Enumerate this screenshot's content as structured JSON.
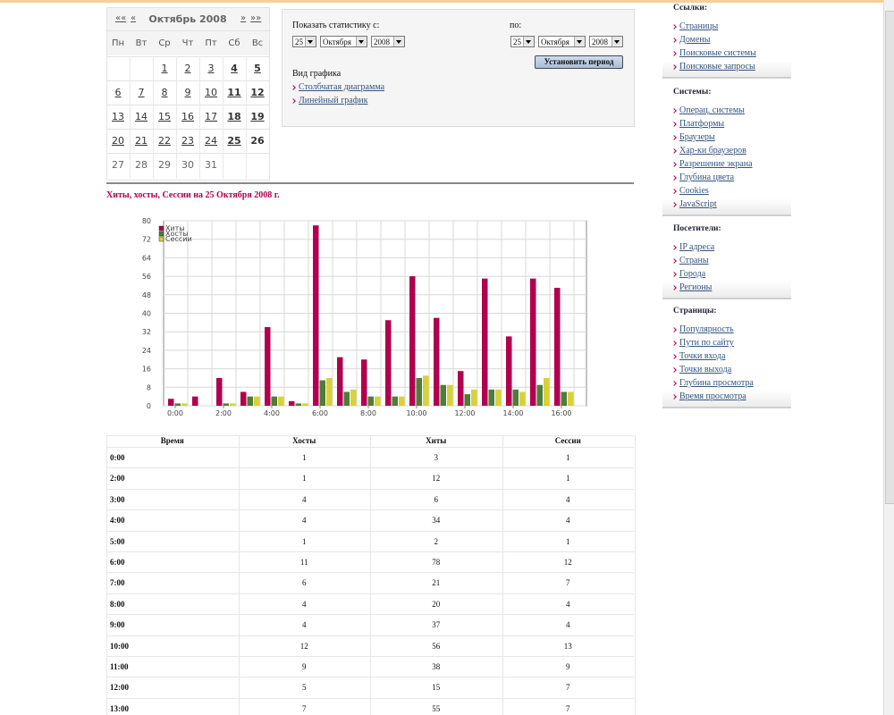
{
  "calendar": {
    "prev_year": "««",
    "prev_month": "«",
    "title": "Октябрь 2008",
    "next_month": "»",
    "next_year": "»»",
    "weekdays": [
      "Пн",
      "Вт",
      "Ср",
      "Чт",
      "Пт",
      "Сб",
      "Вс"
    ],
    "weeks": [
      [
        null,
        null,
        1,
        2,
        3,
        4,
        5
      ],
      [
        6,
        7,
        8,
        9,
        10,
        11,
        12
      ],
      [
        13,
        14,
        15,
        16,
        17,
        18,
        19
      ],
      [
        20,
        21,
        22,
        23,
        24,
        25,
        26
      ],
      [
        27,
        28,
        29,
        30,
        31,
        null,
        null
      ]
    ]
  },
  "period_form": {
    "from_label": "Показать статистику с:",
    "from": [
      "25",
      "Октября",
      "2008"
    ],
    "to_label": "по:",
    "to": [
      "25",
      "Октября",
      "2008"
    ],
    "button": "Установить период",
    "view_label": "Вид графика",
    "view_links": [
      "Столбчатая диаграмма",
      "Линейный график"
    ]
  },
  "chart_data": {
    "type": "bar",
    "title": "Хиты, хосты, Сессии на 25 Октября 2008 г.",
    "categories": [
      "0:00",
      null,
      "2:00",
      null,
      "4:00",
      null,
      "6:00",
      null,
      "8:00",
      null,
      "10:00",
      null,
      "12:00",
      null,
      "14:00",
      null,
      "16:00"
    ],
    "series": [
      {
        "name": "Хиты",
        "color": "#b0004f",
        "values": [
          3,
          4,
          12,
          6,
          34,
          2,
          78,
          21,
          20,
          37,
          56,
          38,
          15,
          55,
          30,
          55,
          51
        ]
      },
      {
        "name": "Хосты",
        "color": "#4e7d3a",
        "values": [
          1,
          0,
          1,
          4,
          4,
          1,
          11,
          6,
          4,
          4,
          12,
          9,
          5,
          7,
          7,
          9,
          6
        ]
      },
      {
        "name": "Сессии",
        "color": "#d8d23a",
        "values": [
          1,
          0,
          1,
          4,
          4,
          1,
          12,
          7,
          4,
          4,
          13,
          9,
          7,
          7,
          6,
          12,
          6
        ]
      }
    ],
    "ylim": [
      0,
      80
    ],
    "yticks": [
      0,
      8,
      16,
      24,
      32,
      40,
      48,
      56,
      64,
      72,
      80
    ],
    "grid": true,
    "legend": "upper left"
  },
  "table": {
    "header": [
      "Время",
      "Хосты",
      "Хиты",
      "Сессии"
    ],
    "rows": [
      [
        "0:00",
        1,
        3,
        1
      ],
      [
        "2:00",
        1,
        12,
        1
      ],
      [
        "3:00",
        4,
        6,
        4
      ],
      [
        "4:00",
        4,
        34,
        4
      ],
      [
        "5:00",
        1,
        2,
        1
      ],
      [
        "6:00",
        11,
        78,
        12
      ],
      [
        "7:00",
        6,
        21,
        7
      ],
      [
        "8:00",
        4,
        20,
        4
      ],
      [
        "9:00",
        4,
        37,
        4
      ],
      [
        "10:00",
        12,
        56,
        13
      ],
      [
        "11:00",
        9,
        38,
        9
      ],
      [
        "12:00",
        5,
        15,
        7
      ],
      [
        "13:00",
        7,
        55,
        7
      ]
    ]
  },
  "sidebar": [
    {
      "title": "Ссылки:",
      "items": [
        "Страницы",
        "Домены",
        "Поисковые системы",
        "Поисковые запросы"
      ]
    },
    {
      "title": "Системы:",
      "items": [
        "Операц. системы",
        "Платформы",
        "Браузеры",
        "Хар-ки браузеров",
        "Разрешение экрана",
        "Глубина цвета",
        "Cookies",
        "JavaScript"
      ]
    },
    {
      "title": "Посетители:",
      "items": [
        "IP адреса",
        "Страны",
        "Города",
        "Регионы"
      ]
    },
    {
      "title": "Страницы:",
      "items": [
        "Популярность",
        "Пути по сайту",
        "Точки входа",
        "Точки выхода",
        "Глубина просмотра",
        "Время просмотра"
      ]
    }
  ]
}
